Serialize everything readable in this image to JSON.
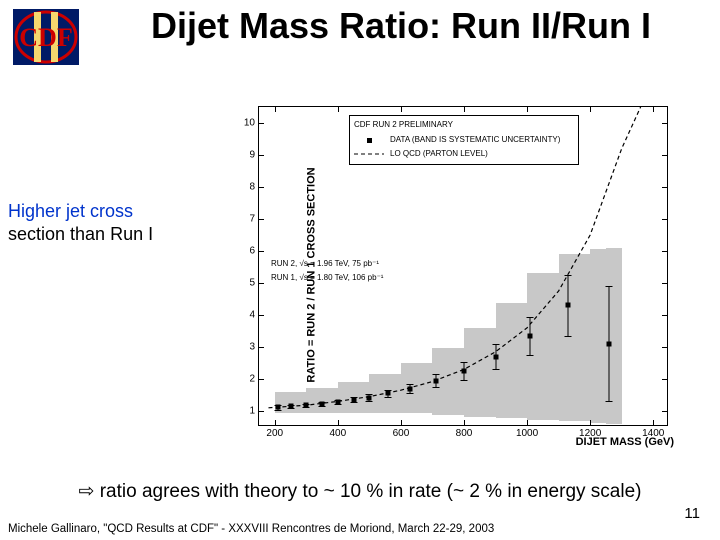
{
  "logo": {
    "text": "CDF",
    "bar_text": "II",
    "bg_color": "#001a66",
    "text_color": "#cc0000",
    "circle_stroke": "#cc0000",
    "bar_fill": "#f5d76e"
  },
  "title": "Dijet Mass Ratio: Run II/Run I",
  "side_note": {
    "line1": "Higher jet cross",
    "line2": "section than Run I"
  },
  "chart": {
    "type": "scatter-with-band-and-curve",
    "ylabel": "RATIO = RUN 2 / RUN 1 CROSS SECTION",
    "xlabel": "DIJET MASS (GeV)",
    "xlim": [
      150,
      1450
    ],
    "ylim": [
      0.5,
      10.5
    ],
    "yticks": [
      1,
      2,
      3,
      4,
      5,
      6,
      7,
      8,
      9,
      10
    ],
    "xticks": [
      200,
      400,
      600,
      800,
      1000,
      1200,
      1400
    ],
    "background_color": "#ffffff",
    "plot_border_color": "#000000",
    "band_color": "#c8c8c8",
    "data_color": "#000000",
    "curve_color": "#000000",
    "curve_dash": "4 3",
    "band": [
      {
        "x": 200,
        "ylo": 0.95,
        "yhi": 1.55
      },
      {
        "x": 300,
        "ylo": 0.95,
        "yhi": 1.65
      },
      {
        "x": 400,
        "ylo": 0.95,
        "yhi": 1.8
      },
      {
        "x": 500,
        "ylo": 0.95,
        "yhi": 2.0
      },
      {
        "x": 600,
        "ylo": 0.95,
        "yhi": 2.3
      },
      {
        "x": 700,
        "ylo": 0.9,
        "yhi": 2.7
      },
      {
        "x": 800,
        "ylo": 0.85,
        "yhi": 3.25
      },
      {
        "x": 900,
        "ylo": 0.8,
        "yhi": 3.95
      },
      {
        "x": 1000,
        "ylo": 0.75,
        "yhi": 4.8
      },
      {
        "x": 1100,
        "ylo": 0.7,
        "yhi": 5.8
      },
      {
        "x": 1200,
        "ylo": 0.65,
        "yhi": 6.0
      },
      {
        "x": 1250,
        "ylo": 0.6,
        "yhi": 6.1
      }
    ],
    "points": [
      {
        "x": 210,
        "y": 1.12,
        "err": 0.08
      },
      {
        "x": 250,
        "y": 1.15,
        "err": 0.05
      },
      {
        "x": 300,
        "y": 1.18,
        "err": 0.05
      },
      {
        "x": 350,
        "y": 1.22,
        "err": 0.06
      },
      {
        "x": 400,
        "y": 1.28,
        "err": 0.07
      },
      {
        "x": 450,
        "y": 1.35,
        "err": 0.08
      },
      {
        "x": 500,
        "y": 1.42,
        "err": 0.1
      },
      {
        "x": 560,
        "y": 1.55,
        "err": 0.12
      },
      {
        "x": 630,
        "y": 1.7,
        "err": 0.15
      },
      {
        "x": 710,
        "y": 1.95,
        "err": 0.2
      },
      {
        "x": 800,
        "y": 2.25,
        "err": 0.28
      },
      {
        "x": 900,
        "y": 2.7,
        "err": 0.4
      },
      {
        "x": 1010,
        "y": 3.35,
        "err": 0.6
      },
      {
        "x": 1130,
        "y": 4.3,
        "err": 0.95
      },
      {
        "x": 1260,
        "y": 3.1,
        "err": 1.8
      }
    ],
    "curve": [
      {
        "x": 180,
        "y": 1.1
      },
      {
        "x": 300,
        "y": 1.18
      },
      {
        "x": 400,
        "y": 1.3
      },
      {
        "x": 500,
        "y": 1.45
      },
      {
        "x": 600,
        "y": 1.65
      },
      {
        "x": 700,
        "y": 1.92
      },
      {
        "x": 800,
        "y": 2.3
      },
      {
        "x": 900,
        "y": 2.85
      },
      {
        "x": 1000,
        "y": 3.6
      },
      {
        "x": 1100,
        "y": 4.75
      },
      {
        "x": 1200,
        "y": 6.5
      },
      {
        "x": 1300,
        "y": 9.2
      },
      {
        "x": 1360,
        "y": 10.5
      }
    ],
    "legend_top": {
      "title": "CDF RUN 2 PRELIMINARY",
      "item1": "DATA (BAND IS SYSTEMATIC UNCERTAINTY)",
      "item2": "LO QCD (PARTON LEVEL)"
    },
    "legend_mid": {
      "run2": "RUN 2,  √s = 1.96 TeV,  75 pb⁻¹",
      "run1": "RUN 1,  √s = 1.80 TeV,  106 pb⁻¹"
    }
  },
  "conclusion": "⇨ ratio agrees with theory to ~ 10 % in rate (~ 2 % in energy scale)",
  "footer": "Michele Gallinaro, \"QCD Results at CDF\" - XXXVIII Rencontres de Moriond, March 22-29, 2003",
  "page_number": "11"
}
